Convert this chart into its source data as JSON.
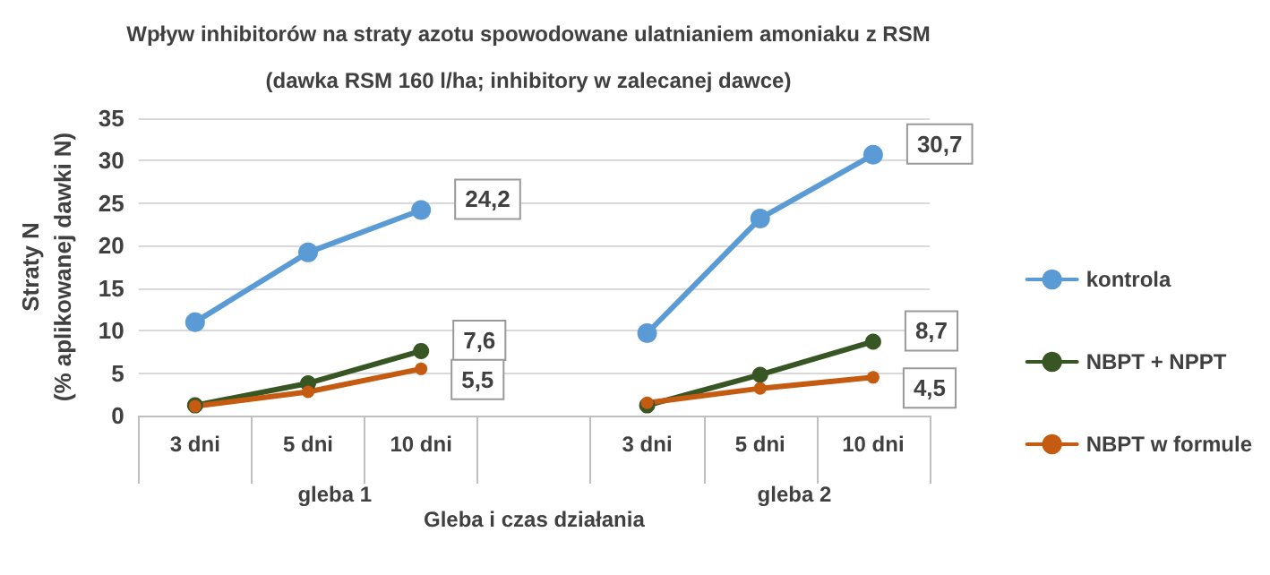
{
  "chart_data": {
    "type": "line",
    "title": "Wpływ inhibitorów na straty azotu spowodowane ulatnianiem amoniaku z RSM",
    "subtitle": "(dawka RSM 160 l/ha; inhibitory w zalecanej dawce)",
    "xlabel": "Gleba i czas działania",
    "ylabel": "Straty N\n(% aplikowanej dawki N)",
    "categories": [
      "3 dni",
      "5 dni",
      "10 dni",
      null,
      "3 dni",
      "5 dni",
      "10 dni"
    ],
    "annotations": [
      "gleba 1",
      "gleba 2"
    ],
    "series": [
      {
        "name": "kontrola",
        "color": "#5b9bd5",
        "values": [
          11,
          19.2,
          24.2,
          null,
          9.7,
          23.2,
          30.7
        ],
        "value_labels": [
          null,
          null,
          "24,2",
          null,
          null,
          null,
          "30,7"
        ]
      },
      {
        "name": "NBPT + NPPT",
        "color": "#375623",
        "values": [
          1.2,
          3.8,
          7.6,
          null,
          1.2,
          4.8,
          8.7
        ],
        "value_labels": [
          null,
          null,
          "7,6",
          null,
          null,
          null,
          "8,7"
        ]
      },
      {
        "name": "NBPT w formule",
        "color": "#c55a11",
        "values": [
          1.1,
          2.8,
          5.5,
          null,
          1.5,
          3.2,
          4.5
        ],
        "value_labels": [
          null,
          null,
          "5,5",
          null,
          null,
          null,
          "4,5"
        ]
      }
    ],
    "ylim": [
      0,
      35
    ],
    "yticks": [
      0,
      5,
      10,
      15,
      20,
      25,
      30,
      35
    ],
    "grid": "y",
    "legend": "right",
    "marker": "circle",
    "line_style": "solid"
  }
}
